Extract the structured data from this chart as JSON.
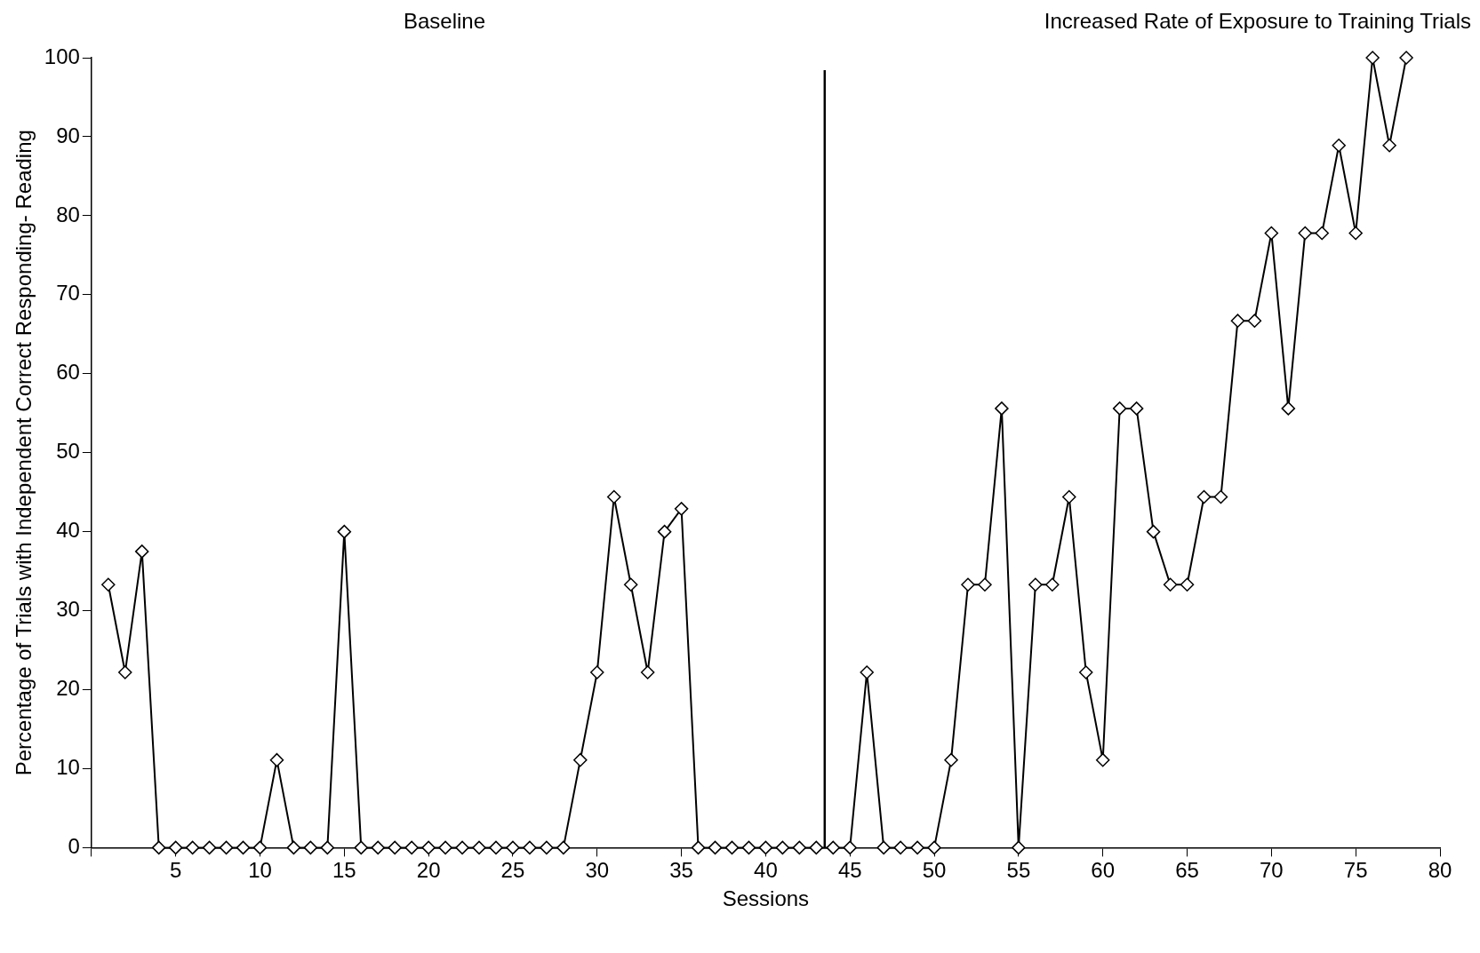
{
  "chart_data": {
    "type": "line",
    "xlabel": "Sessions",
    "ylabel": "Percentage of Trials with Independent Correct Responding- Reading",
    "annotations": [
      "Baseline",
      "Increased Rate of Exposure to Training Trials"
    ],
    "x": [
      1,
      2,
      3,
      4,
      5,
      6,
      7,
      8,
      9,
      10,
      11,
      12,
      13,
      14,
      15,
      16,
      17,
      18,
      19,
      20,
      21,
      22,
      23,
      24,
      25,
      26,
      27,
      28,
      29,
      30,
      31,
      32,
      33,
      34,
      35,
      36,
      37,
      38,
      39,
      40,
      41,
      42,
      43,
      44,
      45,
      46,
      47,
      48,
      49,
      50,
      51,
      52,
      53,
      54,
      55,
      56,
      57,
      58,
      59,
      60,
      61,
      62,
      63,
      64,
      65,
      66,
      67,
      68,
      69,
      70,
      71,
      72,
      73,
      74,
      75,
      76,
      77,
      78
    ],
    "series": [
      {
        "color": "#000000",
        "values": [
          33.3,
          22.2,
          37.5,
          0,
          0,
          0,
          0,
          0,
          0,
          0,
          11.1,
          0,
          0,
          0,
          40,
          0,
          0,
          0,
          0,
          0,
          0,
          0,
          0,
          0,
          0,
          0,
          0,
          0,
          11.1,
          22.2,
          44.4,
          33.3,
          22.2,
          40,
          42.9,
          0,
          0,
          0,
          0,
          0,
          0,
          0,
          0,
          0,
          0,
          22.2,
          0,
          0,
          0,
          0,
          11.1,
          33.3,
          33.3,
          55.6,
          0,
          33.3,
          33.3,
          44.4,
          22.2,
          11.1,
          55.6,
          55.6,
          40,
          33.3,
          33.3,
          44.4,
          44.4,
          66.7,
          66.7,
          77.8,
          55.6,
          77.8,
          77.8,
          88.9,
          77.8,
          100,
          88.9,
          100
        ]
      }
    ],
    "xlim": [
      0,
      80
    ],
    "xticks": [
      {
        "value": 0,
        "label": null
      },
      5,
      10,
      15,
      20,
      25,
      30,
      35,
      40,
      45,
      50,
      55,
      60,
      65,
      70,
      75,
      80
    ],
    "ylim": [
      0,
      100
    ],
    "yticks": [
      0,
      10,
      20,
      30,
      40,
      50,
      60,
      70,
      80,
      90,
      100
    ],
    "ref_lines": [
      {
        "axis": "x",
        "value": 43.5,
        "color": "#000000"
      }
    ],
    "grid": false,
    "legend": false,
    "marker": "diamond",
    "line_style": "solid"
  }
}
